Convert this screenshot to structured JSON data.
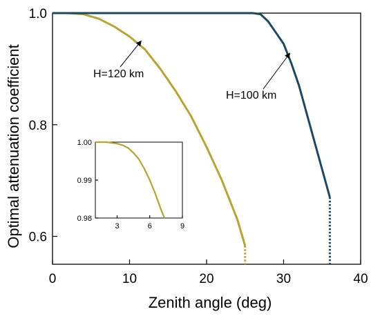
{
  "chart_data": [
    {
      "type": "line",
      "xlabel": "Zenith angle (deg)",
      "ylabel": "Optimal attenuation coefficient",
      "xlim": [
        0,
        40
      ],
      "ylim": [
        0.55,
        1.0
      ],
      "xticks": [
        0,
        10,
        20,
        30,
        40
      ],
      "xtick_labels": [
        "0",
        "10",
        "20",
        "30",
        "40"
      ],
      "yticks": [
        0.6,
        0.8,
        1.0
      ],
      "ytick_labels": [
        "0.6",
        "0.8",
        "1.0"
      ],
      "grid": false,
      "series": [
        {
          "name": "H=120 km",
          "color": "#b8a42e",
          "x": [
            0,
            2,
            4,
            6,
            8,
            10,
            12,
            14,
            16,
            18,
            20,
            22,
            24,
            25
          ],
          "y": [
            1.0,
            1.0,
            0.998,
            0.99,
            0.976,
            0.958,
            0.935,
            0.9,
            0.86,
            0.815,
            0.76,
            0.7,
            0.63,
            0.583
          ],
          "dotted_extension": {
            "x": [
              25,
              25
            ],
            "y": [
              0.583,
              0.55
            ]
          }
        },
        {
          "name": "H=100 km",
          "color": "#1b4864",
          "x": [
            0,
            10,
            20,
            26,
            27,
            28,
            29,
            30,
            31,
            32,
            33,
            34,
            35,
            36
          ],
          "y": [
            1.0,
            1.0,
            1.0,
            1.0,
            0.998,
            0.985,
            0.965,
            0.945,
            0.91,
            0.87,
            0.82,
            0.77,
            0.72,
            0.67
          ],
          "dotted_extension": {
            "x": [
              36,
              36
            ],
            "y": [
              0.67,
              0.55
            ]
          }
        }
      ],
      "annotations": [
        {
          "text": "H=120 km",
          "points_to": [
            11.5,
            0.95
          ]
        },
        {
          "text": "H=100 km",
          "points_to": [
            30.8,
            0.928
          ]
        }
      ]
    },
    {
      "type": "line",
      "role": "inset",
      "xlim": [
        1,
        9
      ],
      "ylim": [
        0.98,
        1.0
      ],
      "xticks": [
        3,
        6,
        9
      ],
      "xtick_labels": [
        "3",
        "6",
        "9"
      ],
      "yticks": [
        0.98,
        0.99,
        1.0
      ],
      "ytick_labels": [
        "0.98",
        "0.99",
        "1.00"
      ],
      "series": [
        {
          "name": "H=120 km",
          "color": "#b8a42e",
          "x": [
            1,
            2,
            3,
            3.5,
            4,
            4.5,
            5,
            5.5,
            6,
            6.5,
            7,
            7.35
          ],
          "y": [
            1.0,
            1.0,
            0.9996,
            0.9992,
            0.9985,
            0.9972,
            0.9955,
            0.993,
            0.99,
            0.9865,
            0.9825,
            0.98
          ]
        }
      ]
    }
  ]
}
